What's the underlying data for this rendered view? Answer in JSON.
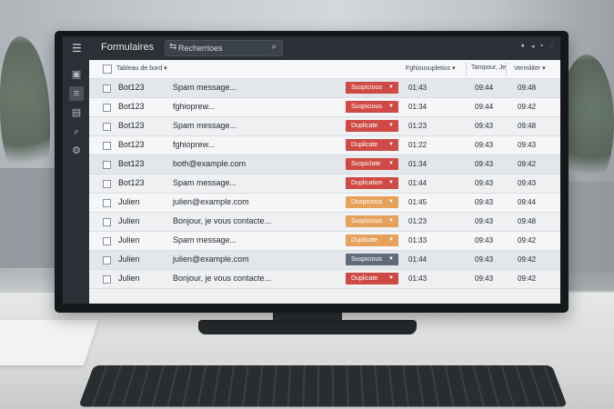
{
  "app": {
    "title": "Formulaires",
    "menu_icon": "hamburger-icon",
    "search_placeholder": "Recherrloes",
    "search_lead_icon": "filter-icon",
    "search_icon": "search-icon",
    "top_icons": [
      "settings-icon",
      "bell-icon",
      "user-icon",
      "more-icon"
    ]
  },
  "sidebar": {
    "items": [
      {
        "icon": "inbox-icon",
        "active": false
      },
      {
        "icon": "list-icon",
        "active": true
      },
      {
        "icon": "document-icon",
        "active": false
      },
      {
        "icon": "search-icon",
        "active": false
      },
      {
        "icon": "gear-icon",
        "active": false
      }
    ]
  },
  "table": {
    "headers": {
      "dashboard": "Tableau de bord ▾",
      "col_a": "Fghiousupletios ▾",
      "col_b": "Tampour, Je",
      "col_c": "Vermiliter ▾"
    },
    "rows": [
      {
        "name": "Bot123",
        "subject": "Spam message...",
        "status": "Suspicious",
        "t1": "01:43",
        "t2": "09:44",
        "t3": "09:48"
      },
      {
        "name": "Bot123",
        "subject": "fghioprew...",
        "status": "Suspicious",
        "t1": "01:34",
        "t2": "09:44",
        "t3": "09:42"
      },
      {
        "name": "Bot123",
        "subject": "Spam message...",
        "status": "Duplicate",
        "t1": "01:23",
        "t2": "09:43",
        "t3": "09:48"
      },
      {
        "name": "Bot123",
        "subject": "fghioprew...",
        "status": "Duplicate",
        "t1": "01:22",
        "t2": "09:43",
        "t3": "09:43"
      },
      {
        "name": "Bot123",
        "subject": "both@example.com",
        "status": "Suspiclate",
        "t1": "01:34",
        "t2": "09:43",
        "t3": "09:42"
      },
      {
        "name": "Bot123",
        "subject": "Spam message...",
        "status": "Duplication",
        "t1": "01:44",
        "t2": "09:43",
        "t3": "09:43"
      },
      {
        "name": "Julien",
        "subject": "julien@example.com",
        "status": "Duspicious",
        "t1": "01:45",
        "t2": "09:43",
        "t3": "09:44"
      },
      {
        "name": "Julien",
        "subject": "Bonjour, je vous contacte...",
        "status": "Suspicious",
        "t1": "01:23",
        "t2": "09:43",
        "t3": "09:48"
      },
      {
        "name": "Julien",
        "subject": "Spam message...",
        "status": "Duplicate",
        "t1": "01:33",
        "t2": "09:43",
        "t3": "09:42"
      },
      {
        "name": "Julien",
        "subject": "julien@example.com",
        "status": "Suspicious",
        "t1": "01:44",
        "t2": "09:43",
        "t3": "09:42"
      },
      {
        "name": "Julien",
        "subject": "Bonjour, je vous contacte...",
        "status": "Duplicate",
        "t1": "01:43",
        "t2": "09:43",
        "t3": "09:42"
      }
    ]
  },
  "colors": {
    "red": "#cf4a45",
    "orange": "#e6a15a",
    "slate": "#5f6b78"
  }
}
